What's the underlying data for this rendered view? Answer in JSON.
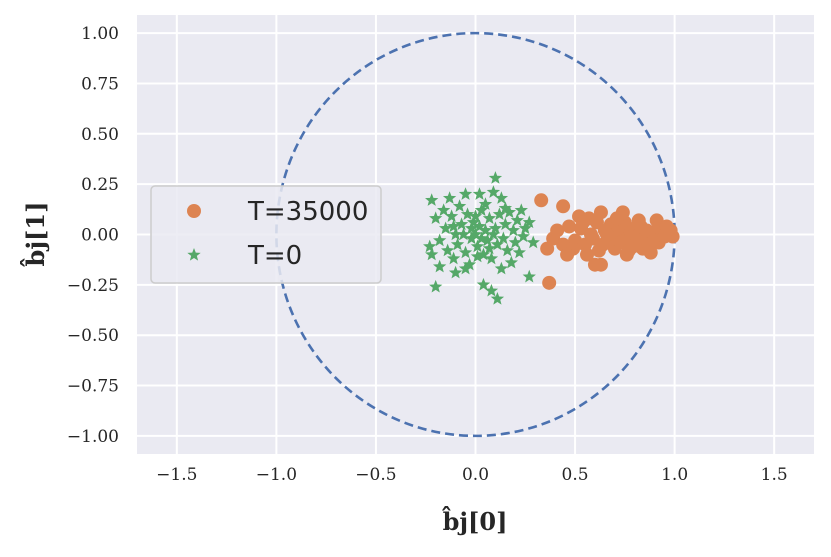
{
  "chart_data": {
    "type": "scatter",
    "xlabel": "b̂j[0]",
    "ylabel": "b̂j[1]",
    "xlim": [
      -1.7,
      1.7
    ],
    "ylim": [
      -1.09,
      1.09
    ],
    "xticks": [
      -1.5,
      -1.0,
      -0.5,
      0.0,
      0.5,
      1.0,
      1.5
    ],
    "xtick_labels": [
      "−1.5",
      "−1.0",
      "−0.5",
      "0.0",
      "0.5",
      "1.0",
      "1.5"
    ],
    "yticks": [
      1.0,
      0.75,
      0.5,
      0.25,
      0.0,
      -0.25,
      -0.5,
      -0.75,
      -1.0
    ],
    "ytick_labels": [
      "1.00",
      "0.75",
      "0.50",
      "0.25",
      "0.00",
      "−0.25",
      "−0.50",
      "−0.75",
      "−1.00"
    ],
    "grid": true,
    "legend_position": "center-left",
    "background_color": "#eaeaf2",
    "unit_circle": {
      "center": [
        0,
        0
      ],
      "radius": 1,
      "style": "dashed",
      "color": "#4c72b0"
    },
    "series": [
      {
        "name": "T=35000",
        "marker": "circle",
        "color": "#dd8452",
        "points": [
          [
            0.33,
            0.17
          ],
          [
            0.37,
            -0.24
          ],
          [
            0.44,
            0.14
          ],
          [
            0.52,
            0.09
          ],
          [
            0.63,
            0.11
          ],
          [
            0.74,
            0.11
          ],
          [
            0.91,
            0.07
          ],
          [
            0.98,
            0.02
          ],
          [
            0.99,
            -0.01
          ],
          [
            0.97,
            0.01
          ],
          [
            0.6,
            -0.15
          ],
          [
            0.63,
            -0.15
          ],
          [
            0.7,
            -0.07
          ],
          [
            0.76,
            -0.1
          ],
          [
            0.84,
            -0.07
          ],
          [
            0.88,
            -0.09
          ],
          [
            0.92,
            -0.04
          ],
          [
            0.36,
            -0.07
          ],
          [
            0.39,
            -0.02
          ],
          [
            0.41,
            0.02
          ],
          [
            0.44,
            -0.05
          ],
          [
            0.47,
            0.04
          ],
          [
            0.5,
            -0.03
          ],
          [
            0.53,
            0.03
          ],
          [
            0.55,
            -0.05
          ],
          [
            0.57,
            0.08
          ],
          [
            0.59,
            -0.02
          ],
          [
            0.61,
            0.06
          ],
          [
            0.62,
            -0.08
          ],
          [
            0.65,
            0.02
          ],
          [
            0.67,
            -0.03
          ],
          [
            0.68,
            0.05
          ],
          [
            0.7,
            0.0
          ],
          [
            0.72,
            0.03
          ],
          [
            0.73,
            -0.04
          ],
          [
            0.75,
            0.06
          ],
          [
            0.76,
            -0.02
          ],
          [
            0.78,
            0.01
          ],
          [
            0.79,
            -0.06
          ],
          [
            0.8,
            0.03
          ],
          [
            0.81,
            -0.01
          ],
          [
            0.83,
            0.04
          ],
          [
            0.85,
            -0.02
          ],
          [
            0.86,
            0.02
          ],
          [
            0.87,
            -0.05
          ],
          [
            0.89,
            0.01
          ],
          [
            0.9,
            -0.03
          ],
          [
            0.93,
            0.03
          ],
          [
            0.95,
            -0.01
          ],
          [
            0.96,
            0.04
          ],
          [
            0.56,
            -0.1
          ],
          [
            0.49,
            -0.07
          ],
          [
            0.54,
            0.06
          ],
          [
            0.46,
            -0.1
          ],
          [
            0.64,
            -0.05
          ],
          [
            0.71,
            0.08
          ],
          [
            0.77,
            -0.08
          ],
          [
            0.82,
            0.07
          ],
          [
            0.58,
            0.0
          ],
          [
            0.66,
            0.0
          ]
        ]
      },
      {
        "name": "T=0",
        "marker": "star",
        "color": "#55a868",
        "points": [
          [
            0.1,
            0.28
          ],
          [
            0.09,
            0.21
          ],
          [
            0.13,
            0.18
          ],
          [
            0.17,
            0.11
          ],
          [
            0.23,
            0.12
          ],
          [
            0.27,
            0.06
          ],
          [
            0.29,
            -0.04
          ],
          [
            0.22,
            -0.09
          ],
          [
            0.27,
            -0.21
          ],
          [
            0.11,
            -0.32
          ],
          [
            0.08,
            -0.28
          ],
          [
            0.04,
            -0.25
          ],
          [
            -0.05,
            -0.17
          ],
          [
            -0.1,
            -0.19
          ],
          [
            -0.18,
            -0.16
          ],
          [
            -0.2,
            -0.26
          ],
          [
            -0.22,
            -0.1
          ],
          [
            -0.23,
            -0.06
          ],
          [
            -0.2,
            0.08
          ],
          [
            -0.22,
            0.17
          ],
          [
            -0.13,
            0.18
          ],
          [
            -0.05,
            0.2
          ],
          [
            0.02,
            0.2
          ],
          [
            -0.16,
            0.12
          ],
          [
            -0.11,
            -0.12
          ],
          [
            -0.18,
            -0.03
          ],
          [
            -0.15,
            0.03
          ],
          [
            -0.12,
            0.09
          ],
          [
            -0.09,
            -0.05
          ],
          [
            -0.07,
            0.05
          ],
          [
            -0.05,
            -0.09
          ],
          [
            -0.04,
            0.1
          ],
          [
            -0.02,
            -0.02
          ],
          [
            -0.01,
            0.06
          ],
          [
            0.0,
            0.0
          ],
          [
            0.01,
            -0.06
          ],
          [
            0.02,
            0.04
          ],
          [
            0.03,
            0.12
          ],
          [
            0.04,
            -0.1
          ],
          [
            0.05,
            0.02
          ],
          [
            0.06,
            -0.03
          ],
          [
            0.07,
            0.08
          ],
          [
            0.08,
            -0.12
          ],
          [
            0.1,
            0.03
          ],
          [
            0.11,
            -0.05
          ],
          [
            0.12,
            0.1
          ],
          [
            0.14,
            -0.02
          ],
          [
            0.15,
            0.05
          ],
          [
            0.16,
            -0.08
          ],
          [
            0.19,
            0.02
          ],
          [
            0.2,
            -0.04
          ],
          [
            0.21,
            0.07
          ],
          [
            0.24,
            -0.01
          ],
          [
            0.25,
            0.03
          ],
          [
            0.18,
            -0.14
          ],
          [
            -0.14,
            -0.08
          ],
          [
            -0.08,
            0.14
          ],
          [
            0.05,
            0.15
          ],
          [
            0.13,
            -0.17
          ],
          [
            -0.03,
            -0.15
          ],
          [
            -0.1,
            0.0
          ],
          [
            -0.06,
            0.0
          ],
          [
            0.0,
            0.09
          ],
          [
            0.03,
            -0.02
          ],
          [
            0.09,
            0.0
          ],
          [
            -0.02,
            0.03
          ],
          [
            0.01,
            -0.11
          ],
          [
            -0.11,
            0.04
          ],
          [
            0.07,
            -0.07
          ],
          [
            0.15,
            0.13
          ]
        ]
      }
    ]
  }
}
